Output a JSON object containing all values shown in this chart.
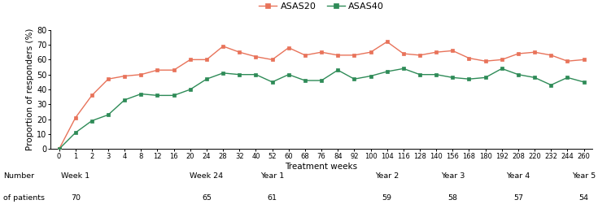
{
  "asas20_values": [
    0,
    21,
    36,
    47,
    49,
    50,
    53,
    53,
    60,
    60,
    69,
    65,
    62,
    60,
    68,
    63,
    65,
    63,
    63,
    65,
    72,
    64,
    63,
    65,
    66,
    61,
    59,
    60,
    64,
    65,
    63,
    59,
    60
  ],
  "asas40_values": [
    0,
    11,
    19,
    23,
    33,
    37,
    36,
    36,
    40,
    47,
    51,
    50,
    50,
    45,
    50,
    46,
    46,
    53,
    47,
    49,
    52,
    54,
    50,
    50,
    48,
    47,
    48,
    54,
    50,
    48,
    43,
    48,
    45
  ],
  "xtick_labels": [
    "0",
    "1",
    "2",
    "3",
    "4",
    "8",
    "12",
    "16",
    "20",
    "24",
    "28",
    "32",
    "40",
    "52",
    "60",
    "68",
    "76",
    "84",
    "92",
    "100",
    "104",
    "116",
    "128",
    "140",
    "156",
    "168",
    "180",
    "192",
    "208",
    "220",
    "232",
    "244",
    "260"
  ],
  "asas20_color": "#e8735a",
  "asas40_color": "#2e8b57",
  "xlabel": "Treatment weeks",
  "ylabel": "Proportion of responders (%)",
  "ylim": [
    0,
    80
  ],
  "yticks": [
    0,
    10,
    20,
    30,
    40,
    50,
    60,
    70,
    80
  ],
  "legend_labels": [
    "ASAS20",
    "ASAS40"
  ],
  "table_period_labels": [
    "Week 1",
    "Week 24",
    "Year 1",
    "Year 2",
    "Year 3",
    "Year 4",
    "Year 5"
  ],
  "table_period_indices": [
    1,
    9,
    13,
    20,
    24,
    28,
    32
  ],
  "table_n_labels": [
    "70",
    "65",
    "61",
    "59",
    "58",
    "57",
    "54"
  ],
  "background_color": "#ffffff",
  "marker_size": 3.5,
  "line_width": 1.0
}
